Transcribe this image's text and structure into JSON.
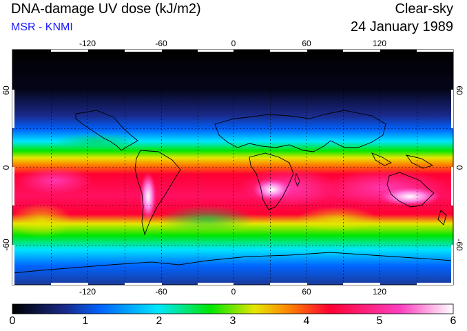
{
  "header": {
    "title": "DNA-damage UV dose (kJ/m2)",
    "subtitle": "MSR - KNMI",
    "sky_condition": "Clear-sky",
    "date": "24 January 1989"
  },
  "map": {
    "longitude_ticks": [
      "-120",
      "-60",
      "0",
      "60",
      "120"
    ],
    "latitude_ticks": [
      "60",
      "0",
      "-60"
    ],
    "longitude_range": [
      -180,
      180
    ],
    "latitude_range": [
      -90,
      90
    ]
  },
  "colorbar": {
    "ticks": [
      "0",
      "1",
      "2",
      "3",
      "4",
      "5",
      "6"
    ],
    "range": [
      0,
      6
    ],
    "colors": [
      "#000000",
      "#1a2a8a",
      "#0064ff",
      "#00e6ff",
      "#00e600",
      "#e6e600",
      "#ff8000",
      "#ff0033",
      "#ff40c0",
      "#ffffff"
    ]
  }
}
